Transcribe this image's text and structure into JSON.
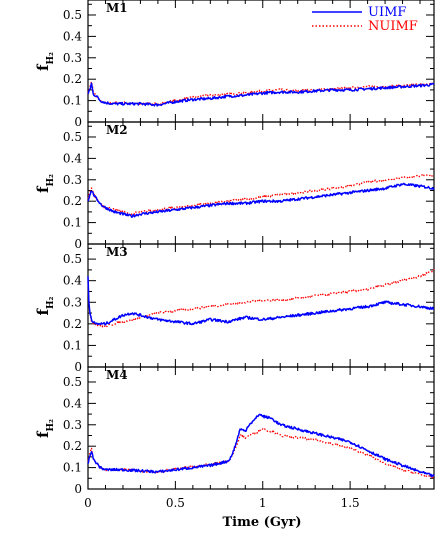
{
  "colors": {
    "uimf": "#0000ff",
    "nuimf": "#ff0000",
    "axis": "#000000"
  },
  "chart_data": {
    "type": "line",
    "xlabel": "Time (Gyr)",
    "xlim": [
      0,
      1.98
    ],
    "x_ticks": [
      "0",
      "0.5",
      "1",
      "1.5"
    ],
    "legend": {
      "placement": "top-right",
      "entries": [
        "UIMF",
        "NUIMF"
      ]
    },
    "y_label_main": "f",
    "y_label_sub": "H₂",
    "panels": [
      {
        "label": "M1",
        "ylim": [
          0,
          0.57
        ],
        "y_ticks": [
          "0",
          "0.1",
          "0.2",
          "0.3",
          "0.4",
          "0.5"
        ],
        "series": [
          {
            "name": "UIMF",
            "style": "solid",
            "x": [
              0,
              0.01,
              0.02,
              0.03,
              0.05,
              0.07,
              0.1,
              0.15,
              0.2,
              0.3,
              0.4,
              0.5,
              0.6,
              0.7,
              0.8,
              0.9,
              1.0,
              1.1,
              1.2,
              1.3,
              1.4,
              1.5,
              1.6,
              1.7,
              1.8,
              1.9,
              1.98
            ],
            "y": [
              0.13,
              0.15,
              0.18,
              0.13,
              0.12,
              0.1,
              0.09,
              0.085,
              0.085,
              0.085,
              0.08,
              0.095,
              0.105,
              0.11,
              0.12,
              0.125,
              0.135,
              0.14,
              0.14,
              0.145,
              0.15,
              0.15,
              0.155,
              0.16,
              0.165,
              0.17,
              0.175
            ]
          },
          {
            "name": "NUIMF",
            "style": "dotted",
            "x": [
              0,
              0.01,
              0.02,
              0.03,
              0.05,
              0.07,
              0.1,
              0.15,
              0.2,
              0.3,
              0.4,
              0.5,
              0.6,
              0.7,
              0.8,
              0.9,
              1.0,
              1.1,
              1.2,
              1.3,
              1.4,
              1.5,
              1.6,
              1.7,
              1.8,
              1.9,
              1.98
            ],
            "y": [
              0.14,
              0.16,
              0.19,
              0.14,
              0.12,
              0.1,
              0.09,
              0.09,
              0.09,
              0.085,
              0.085,
              0.1,
              0.115,
              0.125,
              0.13,
              0.135,
              0.145,
              0.15,
              0.145,
              0.15,
              0.155,
              0.16,
              0.165,
              0.165,
              0.17,
              0.175,
              0.18
            ]
          }
        ]
      },
      {
        "label": "M2",
        "ylim": [
          0,
          0.57
        ],
        "y_ticks": [
          "0",
          "0.1",
          "0.2",
          "0.3",
          "0.4",
          "0.5"
        ],
        "series": [
          {
            "name": "UIMF",
            "style": "solid",
            "x": [
              0,
              0.01,
              0.02,
              0.04,
              0.06,
              0.08,
              0.1,
              0.15,
              0.2,
              0.25,
              0.3,
              0.4,
              0.5,
              0.6,
              0.7,
              0.8,
              0.9,
              1.0,
              1.1,
              1.2,
              1.3,
              1.4,
              1.5,
              1.6,
              1.7,
              1.8,
              1.9,
              1.98
            ],
            "y": [
              0.2,
              0.23,
              0.25,
              0.22,
              0.2,
              0.18,
              0.17,
              0.15,
              0.14,
              0.13,
              0.14,
              0.15,
              0.16,
              0.17,
              0.18,
              0.19,
              0.19,
              0.2,
              0.2,
              0.21,
              0.22,
              0.23,
              0.24,
              0.25,
              0.26,
              0.28,
              0.27,
              0.26
            ]
          },
          {
            "name": "NUIMF",
            "style": "dotted",
            "x": [
              0,
              0.01,
              0.02,
              0.04,
              0.06,
              0.08,
              0.1,
              0.15,
              0.2,
              0.25,
              0.3,
              0.4,
              0.5,
              0.6,
              0.7,
              0.8,
              0.9,
              1.0,
              1.1,
              1.2,
              1.3,
              1.4,
              1.5,
              1.6,
              1.7,
              1.8,
              1.9,
              1.98
            ],
            "y": [
              0.21,
              0.24,
              0.26,
              0.22,
              0.2,
              0.18,
              0.17,
              0.16,
              0.15,
              0.14,
              0.15,
              0.16,
              0.17,
              0.18,
              0.19,
              0.2,
              0.21,
              0.22,
              0.23,
              0.24,
              0.25,
              0.26,
              0.27,
              0.29,
              0.3,
              0.31,
              0.32,
              0.32
            ]
          }
        ]
      },
      {
        "label": "M3",
        "ylim": [
          0,
          0.57
        ],
        "y_ticks": [
          "0",
          "0.1",
          "0.2",
          "0.3",
          "0.4",
          "0.5"
        ],
        "series": [
          {
            "name": "UIMF",
            "style": "solid",
            "x": [
              0,
              0.005,
              0.01,
              0.02,
              0.04,
              0.06,
              0.1,
              0.15,
              0.2,
              0.25,
              0.3,
              0.35,
              0.4,
              0.5,
              0.6,
              0.7,
              0.8,
              0.9,
              1.0,
              1.1,
              1.2,
              1.3,
              1.4,
              1.5,
              1.6,
              1.7,
              1.8,
              1.9,
              1.98
            ],
            "y": [
              0.42,
              0.3,
              0.26,
              0.22,
              0.2,
              0.2,
              0.2,
              0.22,
              0.24,
              0.25,
              0.24,
              0.23,
              0.22,
              0.21,
              0.2,
              0.22,
              0.21,
              0.23,
              0.22,
              0.23,
              0.24,
              0.25,
              0.26,
              0.27,
              0.28,
              0.3,
              0.29,
              0.28,
              0.27
            ]
          },
          {
            "name": "NUIMF",
            "style": "dotted",
            "x": [
              0,
              0.005,
              0.01,
              0.02,
              0.04,
              0.06,
              0.1,
              0.15,
              0.2,
              0.25,
              0.3,
              0.35,
              0.4,
              0.5,
              0.6,
              0.7,
              0.8,
              0.9,
              1.0,
              1.1,
              1.2,
              1.3,
              1.4,
              1.5,
              1.6,
              1.7,
              1.8,
              1.9,
              1.98
            ],
            "y": [
              0.4,
              0.3,
              0.25,
              0.21,
              0.2,
              0.19,
              0.19,
              0.2,
              0.21,
              0.22,
              0.23,
              0.24,
              0.25,
              0.26,
              0.27,
              0.28,
              0.29,
              0.3,
              0.31,
              0.31,
              0.32,
              0.33,
              0.34,
              0.35,
              0.36,
              0.38,
              0.4,
              0.42,
              0.45
            ]
          }
        ]
      },
      {
        "label": "M4",
        "ylim": [
          0,
          0.57
        ],
        "y_ticks": [
          "0",
          "0.1",
          "0.2",
          "0.3",
          "0.4",
          "0.5"
        ],
        "series": [
          {
            "name": "UIMF",
            "style": "solid",
            "x": [
              0,
              0.01,
              0.02,
              0.03,
              0.05,
              0.07,
              0.1,
              0.2,
              0.3,
              0.4,
              0.5,
              0.6,
              0.7,
              0.8,
              0.82,
              0.85,
              0.87,
              0.9,
              0.92,
              0.95,
              0.98,
              1.0,
              1.05,
              1.1,
              1.2,
              1.3,
              1.4,
              1.5,
              1.6,
              1.7,
              1.8,
              1.9,
              1.98
            ],
            "y": [
              0.12,
              0.15,
              0.18,
              0.14,
              0.12,
              0.1,
              0.09,
              0.09,
              0.085,
              0.08,
              0.09,
              0.1,
              0.11,
              0.13,
              0.15,
              0.22,
              0.28,
              0.27,
              0.3,
              0.32,
              0.35,
              0.34,
              0.33,
              0.3,
              0.28,
              0.26,
              0.24,
              0.22,
              0.18,
              0.14,
              0.11,
              0.08,
              0.06
            ]
          },
          {
            "name": "NUIMF",
            "style": "dotted",
            "x": [
              0,
              0.01,
              0.02,
              0.03,
              0.05,
              0.07,
              0.1,
              0.2,
              0.3,
              0.4,
              0.5,
              0.6,
              0.7,
              0.8,
              0.82,
              0.85,
              0.87,
              0.9,
              0.92,
              0.95,
              0.98,
              1.0,
              1.05,
              1.1,
              1.2,
              1.3,
              1.4,
              1.5,
              1.6,
              1.7,
              1.8,
              1.9,
              1.98
            ],
            "y": [
              0.13,
              0.16,
              0.19,
              0.14,
              0.12,
              0.1,
              0.09,
              0.09,
              0.085,
              0.08,
              0.095,
              0.105,
              0.115,
              0.13,
              0.15,
              0.2,
              0.25,
              0.24,
              0.25,
              0.26,
              0.27,
              0.28,
              0.27,
              0.25,
              0.24,
              0.23,
              0.21,
              0.19,
              0.16,
              0.12,
              0.09,
              0.07,
              0.05
            ]
          }
        ]
      }
    ]
  }
}
